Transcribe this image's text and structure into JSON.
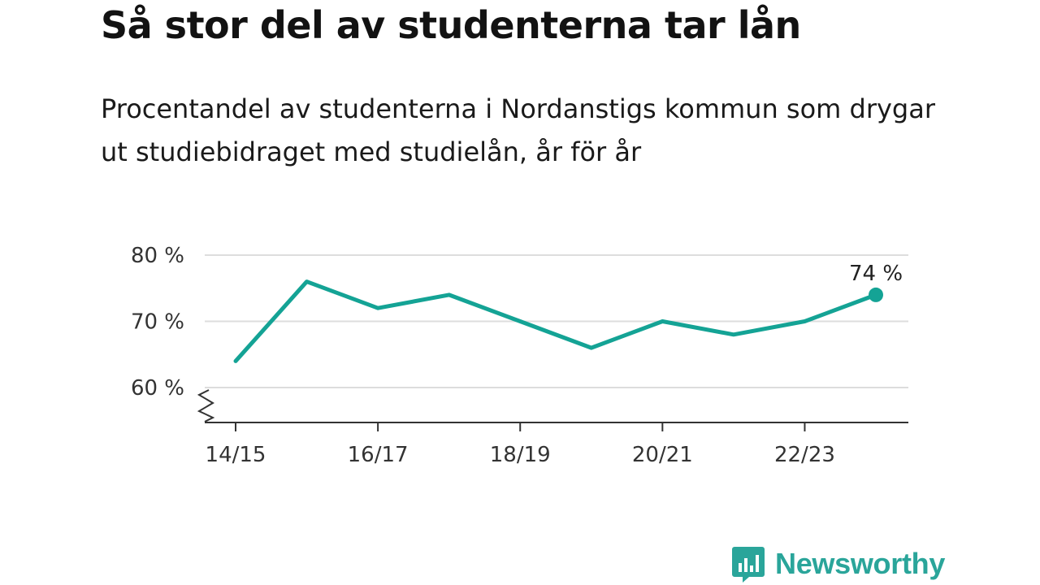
{
  "header": {
    "title": "Så stor del av studenterna tar lån",
    "subtitle": "Procentandel av studenterna i Nordanstigs kommun som drygar ut studiebidraget med studielån, år för år"
  },
  "brand": {
    "name": "Newsworthy",
    "icon": "chart-bubble-icon",
    "color": "#2aa59a"
  },
  "colors": {
    "line": "#14a395",
    "grid": "#dddddd",
    "axis": "#333333"
  },
  "chart_data": {
    "type": "line",
    "title": "Så stor del av studenterna tar lån",
    "subtitle": "Procentandel av studenterna i Nordanstigs kommun som drygar ut studiebidraget med studielån, år för år",
    "x": [
      "14/15",
      "15/16",
      "16/17",
      "17/18",
      "18/19",
      "19/20",
      "20/21",
      "21/22",
      "22/23",
      "23/24"
    ],
    "values": [
      64,
      76,
      72,
      74,
      70,
      66,
      70,
      68,
      70,
      74
    ],
    "x_tick_labels": [
      "14/15",
      "16/17",
      "18/19",
      "20/21",
      "22/23"
    ],
    "y_ticks": [
      60,
      70,
      80
    ],
    "y_tick_labels": [
      "60 %",
      "70 %",
      "80 %"
    ],
    "ylim": [
      60,
      80
    ],
    "grid": "horizontal",
    "end_label": "74 %",
    "xlabel": "",
    "ylabel": ""
  }
}
